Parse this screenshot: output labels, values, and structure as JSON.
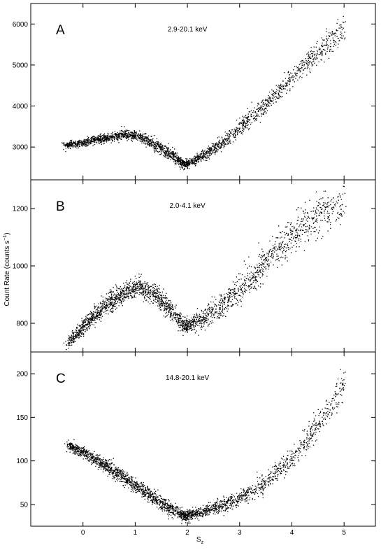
{
  "chart_data": {
    "type": "scatter",
    "xlabel_main": "S",
    "xlabel_sub": "z",
    "ylabel": "Count Rate (counts s",
    "ylabel_sup": "−1",
    "ylabel_end": ")",
    "xlim": [
      -1.0,
      5.6
    ],
    "xticks": [
      "0",
      "1",
      "2",
      "3",
      "4",
      "5"
    ],
    "xtick_values": [
      0,
      1,
      2,
      3,
      4,
      5
    ],
    "point_color": "#000000",
    "panels": [
      {
        "letter": "A",
        "energy": "2.9-20.1 keV",
        "ylim": [
          2200,
          6500
        ],
        "ytick_values": [
          3000,
          4000,
          5000,
          6000
        ],
        "yticks": [
          "3000",
          "4000",
          "5000",
          "6000"
        ],
        "branches": [
          {
            "x": [
              -0.35,
              0,
              0.4,
              0.8,
              1.1,
              1.4,
              1.7,
              1.95
            ],
            "y": [
              3050,
              3120,
              3220,
              3310,
              3260,
              3050,
              2800,
              2580
            ],
            "spread": [
              40,
              50,
              50,
              60,
              60,
              70,
              70,
              60
            ]
          },
          {
            "x": [
              1.95,
              2.3,
              2.7,
              3.0,
              3.4,
              3.8,
              4.2,
              4.6,
              5.0
            ],
            "y": [
              2580,
              2800,
              3150,
              3500,
              3950,
              4450,
              4950,
              5450,
              5950
            ],
            "spread": [
              50,
              60,
              80,
              100,
              110,
              120,
              130,
              150,
              180
            ]
          }
        ]
      },
      {
        "letter": "B",
        "energy": "2.0-4.1 keV",
        "ylim": [
          700,
          1300
        ],
        "ytick_values": [
          800,
          1000,
          1200
        ],
        "yticks": [
          "800",
          "1000",
          "1200"
        ],
        "branches": [
          {
            "x": [
              -0.3,
              0,
              0.4,
              0.8,
              1.1,
              1.4,
              1.7,
              1.95
            ],
            "y": [
              730,
              790,
              860,
              910,
              925,
              900,
              840,
              790
            ],
            "spread": [
              10,
              14,
              16,
              18,
              18,
              18,
              16,
              14
            ]
          },
          {
            "x": [
              1.95,
              2.3,
              2.7,
              3.0,
              3.4,
              3.8,
              4.2,
              4.6,
              5.0
            ],
            "y": [
              790,
              820,
              870,
              920,
              990,
              1070,
              1140,
              1190,
              1220
            ],
            "spread": [
              14,
              18,
              22,
              25,
              28,
              30,
              30,
              30,
              35
            ]
          }
        ]
      },
      {
        "letter": "C",
        "energy": "14.8-20.1 keV",
        "ylim": [
          25,
          225
        ],
        "ytick_values": [
          50,
          100,
          150,
          200
        ],
        "yticks": [
          "50",
          "100",
          "150",
          "200"
        ],
        "branches": [
          {
            "x": [
              -0.3,
              0,
              0.4,
              0.8,
              1.2,
              1.6,
              1.95
            ],
            "y": [
              118,
              110,
              96,
              80,
              64,
              48,
              37
            ],
            "spread": [
              3,
              3,
              4,
              4,
              4,
              4,
              3
            ]
          },
          {
            "x": [
              1.95,
              2.3,
              2.7,
              3.0,
              3.4,
              3.8,
              4.2,
              4.6,
              5.0
            ],
            "y": [
              37,
              42,
              50,
              58,
              72,
              92,
              118,
              150,
              190
            ],
            "spread": [
              3,
              3,
              4,
              4,
              5,
              6,
              7,
              8,
              10
            ]
          }
        ]
      }
    ]
  }
}
